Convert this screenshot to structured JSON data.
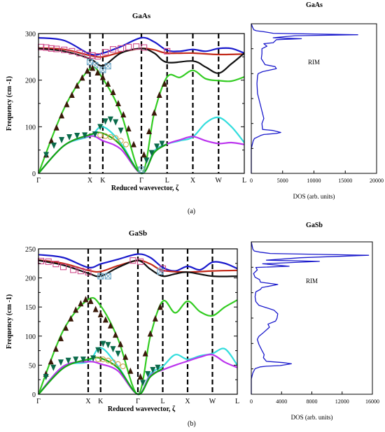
{
  "captions": [
    "(a)",
    "(b)"
  ],
  "chart_data": [
    {
      "type": "line",
      "title": "GaAs",
      "xlabel": "Reduced wavevector, ζ",
      "ylabel": "Frequency (cm -1)",
      "ylim": [
        0,
        300
      ],
      "yticks": [
        0,
        100,
        200,
        300
      ],
      "xticks": [
        "Γ",
        "X",
        "K",
        "Γ",
        "L",
        "X",
        "W",
        "L"
      ],
      "x_positions": [
        0,
        1,
        1.25,
        2,
        2.5,
        3,
        3.5,
        4
      ],
      "series": [
        {
          "color": "#1a1acc",
          "x": [
            0,
            0.5,
            1,
            1.25,
            1.6,
            2,
            2.25,
            2.5,
            2.75,
            3,
            3.25,
            3.5,
            3.75,
            4
          ],
          "y": [
            291,
            285,
            256,
            258,
            272,
            291,
            282,
            264,
            262,
            266,
            262,
            268,
            268,
            258
          ]
        },
        {
          "color": "#c22a1a",
          "x": [
            0,
            0.5,
            1,
            1.25,
            1.6,
            2,
            2.25,
            2.5,
            3,
            3.5,
            4
          ],
          "y": [
            269,
            266,
            253,
            250,
            260,
            268,
            265,
            258,
            258,
            255,
            256
          ]
        },
        {
          "color": "#111111",
          "x": [
            0,
            0.5,
            1,
            1.25,
            1.6,
            2,
            2.25,
            2.5,
            3,
            3.25,
            3.5,
            3.75,
            4
          ],
          "y": [
            268,
            262,
            246,
            231,
            258,
            268,
            258,
            238,
            241,
            228,
            215,
            235,
            258
          ]
        },
        {
          "color": "#33cc22",
          "x": [
            0,
            0.5,
            1,
            1.25,
            1.6,
            2,
            2.25,
            2.5,
            2.75,
            3,
            3.25,
            3.5,
            3.75,
            4
          ],
          "y": [
            0,
            140,
            224,
            203,
            130,
            0,
            130,
            207,
            206,
            221,
            203,
            199,
            198,
            207
          ]
        },
        {
          "color": "#33dddd",
          "x": [
            0,
            0.5,
            1,
            1.25,
            1.6,
            2,
            2.25,
            2.5,
            2.75,
            3,
            3.25,
            3.5,
            3.75,
            4
          ],
          "y": [
            0,
            60,
            80,
            100,
            65,
            0,
            48,
            63,
            70,
            78,
            108,
            120,
            100,
            66
          ]
        },
        {
          "color": "#bb33ee",
          "x": [
            0,
            0.5,
            1,
            1.25,
            1.6,
            2,
            2.25,
            2.5,
            2.75,
            3,
            3.25,
            3.5,
            3.75,
            4
          ],
          "y": [
            0,
            60,
            80,
            70,
            52,
            0,
            45,
            63,
            72,
            79,
            70,
            64,
            66,
            62
          ]
        },
        {
          "color": "#11aa11",
          "x": [
            0,
            0.5,
            1,
            1.25,
            1.6,
            2,
            2.25,
            2.5
          ],
          "y": [
            0,
            60,
            83,
            86,
            60,
            0,
            45,
            63
          ]
        }
      ],
      "experimental": [
        {
          "marker": "square",
          "color": "#d04a8a",
          "x": [
            0.05,
            0.15,
            0.25,
            0.35,
            0.5,
            0.65,
            0.8,
            0.95,
            1.05,
            1.15,
            1.3,
            1.45,
            1.6,
            1.75,
            1.9,
            2.05,
            2.5
          ],
          "y": [
            271,
            270,
            268,
            267,
            265,
            262,
            258,
            254,
            253,
            251,
            260,
            266,
            268,
            271,
            272,
            270,
            262
          ]
        },
        {
          "marker": "cross-square",
          "color": "#6ea8c8",
          "x": [
            1.0,
            1.1,
            1.25,
            1.35,
            2.0
          ],
          "y": [
            239,
            232,
            222,
            230,
            8
          ]
        },
        {
          "marker": "triangle-up",
          "color": "#3a1a0a",
          "x": [
            0.15,
            0.25,
            0.35,
            0.45,
            0.55,
            0.65,
            0.75,
            0.85,
            0.95,
            1.05,
            1.15,
            1.25,
            1.35,
            1.45,
            1.55,
            1.65,
            1.75,
            1.85,
            2.05,
            2.15,
            2.25,
            2.35,
            2.45
          ],
          "y": [
            40,
            70,
            98,
            124,
            148,
            168,
            188,
            205,
            220,
            226,
            216,
            206,
            192,
            174,
            150,
            126,
            96,
            62,
            40,
            90,
            130,
            168,
            192
          ]
        },
        {
          "marker": "triangle-down",
          "color": "#0a6a4a",
          "x": [
            0.15,
            0.3,
            0.45,
            0.6,
            0.75,
            0.9,
            1.1,
            1.2,
            1.3,
            1.4,
            1.5,
            1.6,
            2.1,
            2.2,
            2.3,
            2.4
          ],
          "y": [
            40,
            60,
            72,
            78,
            81,
            82,
            84,
            100,
            112,
            116,
            110,
            92,
            28,
            44,
            58,
            64
          ]
        },
        {
          "marker": "circle",
          "color": "#c8a040",
          "x": [
            1.2,
            1.3,
            1.4,
            1.5,
            1.6,
            1.7
          ],
          "y": [
            82,
            80,
            78,
            76,
            70,
            62
          ]
        }
      ]
    },
    {
      "type": "line",
      "title": "GaAs",
      "xlabel": "DOS (arb. units)",
      "annotation": "RIM",
      "xlim": [
        0,
        20000
      ],
      "xticks": [
        0,
        5000,
        10000,
        15000,
        20000
      ],
      "ylim": [
        0,
        300
      ],
      "series": [
        {
          "color": "#1a1acc",
          "x": [
            0,
            0,
            200,
            300,
            500,
            1200,
            1500,
            2000,
            4000,
            4700,
            3500,
            1800,
            1700,
            2000,
            1800,
            1400,
            1000,
            900,
            1000,
            1100,
            1800,
            2500,
            4000,
            3800,
            2200,
            1600,
            1700,
            1700,
            2500,
            2000,
            3500,
            4000,
            8000,
            3500,
            7000,
            17000,
            3500,
            2500,
            2000,
            800,
            400,
            200,
            0
          ],
          "y": [
            0,
            50,
            60,
            65,
            70,
            74,
            76,
            78,
            80,
            82,
            86,
            88,
            100,
            110,
            120,
            140,
            160,
            180,
            195,
            200,
            204,
            206,
            210,
            214,
            218,
            230,
            240,
            250,
            255,
            260,
            262,
            268,
            270,
            272,
            276,
            278,
            281,
            283,
            284,
            286,
            288,
            293,
            300
          ]
        }
      ]
    },
    {
      "type": "line",
      "title": "GaSb",
      "xlabel": "Reduced wavevector, ζ",
      "ylabel": "Frequency (cm -1)",
      "ylim": [
        0,
        250
      ],
      "yticks": [
        0,
        50,
        100,
        150,
        200,
        250
      ],
      "xticks": [
        "Γ",
        "X",
        "K",
        "Γ",
        "L",
        "X",
        "W",
        "L"
      ],
      "x_positions": [
        0,
        1,
        1.25,
        2,
        2.5,
        3,
        3.5,
        4
      ],
      "series": [
        {
          "color": "#1a1acc",
          "x": [
            0,
            0.5,
            1,
            1.25,
            1.6,
            2,
            2.25,
            2.5,
            2.75,
            3,
            3.25,
            3.5,
            3.75,
            4
          ],
          "y": [
            240,
            235,
            218,
            224,
            232,
            241,
            235,
            218,
            212,
            220,
            214,
            227,
            225,
            216
          ]
        },
        {
          "color": "#c22a1a",
          "x": [
            0,
            0.5,
            1,
            1.25,
            1.6,
            2,
            2.25,
            2.5,
            3,
            3.5,
            4
          ],
          "y": [
            231,
            225,
            213,
            211,
            221,
            230,
            224,
            213,
            210,
            212,
            213
          ]
        },
        {
          "color": "#111111",
          "x": [
            0,
            0.5,
            1,
            1.25,
            1.6,
            2,
            2.25,
            2.5,
            2.75,
            3,
            3.5,
            4
          ],
          "y": [
            230,
            222,
            208,
            203,
            218,
            230,
            215,
            203,
            207,
            210,
            203,
            203
          ]
        },
        {
          "color": "#33cc22",
          "x": [
            0,
            0.5,
            1,
            1.25,
            1.6,
            2,
            2.25,
            2.5,
            2.75,
            3,
            3.25,
            3.5,
            3.75,
            4
          ],
          "y": [
            0,
            110,
            163,
            152,
            95,
            0,
            100,
            160,
            140,
            160,
            142,
            135,
            150,
            162
          ]
        },
        {
          "color": "#33dddd",
          "x": [
            0,
            0.5,
            1,
            1.25,
            1.6,
            2,
            2.25,
            2.5,
            2.75,
            3,
            3.25,
            3.5,
            3.75,
            4
          ],
          "y": [
            0,
            48,
            56,
            80,
            48,
            0,
            35,
            48,
            68,
            60,
            66,
            70,
            78,
            50
          ]
        },
        {
          "color": "#bb33ee",
          "x": [
            0,
            0.5,
            1,
            1.25,
            1.6,
            2,
            2.25,
            2.5,
            2.75,
            3,
            3.25,
            3.5,
            3.75,
            4
          ],
          "y": [
            0,
            48,
            56,
            52,
            40,
            0,
            32,
            42,
            50,
            57,
            64,
            68,
            55,
            46
          ]
        },
        {
          "color": "#11aa11",
          "x": [
            0,
            0.5,
            1,
            1.25,
            1.6,
            2,
            2.25,
            2.5
          ],
          "y": [
            0,
            45,
            60,
            62,
            45,
            0,
            30,
            44
          ]
        }
      ],
      "experimental": [
        {
          "marker": "square",
          "color": "#d04a8a",
          "x": [
            0.05,
            0.2,
            0.35,
            0.5,
            0.7,
            0.85,
            1.0,
            1.9,
            2.05,
            2.5
          ],
          "y": [
            229,
            228,
            224,
            219,
            214,
            212,
            210,
            230,
            228,
            216
          ]
        },
        {
          "marker": "cross-square",
          "color": "#6ea8c8",
          "x": [
            1.25,
            1.4,
            2.45
          ],
          "y": [
            203,
            203,
            211
          ]
        },
        {
          "marker": "triangle-up",
          "color": "#3a1a0a",
          "x": [
            0.15,
            0.25,
            0.35,
            0.45,
            0.55,
            0.65,
            0.75,
            0.85,
            0.95,
            1.05,
            1.15,
            1.25,
            1.35,
            1.45,
            1.55,
            1.65,
            1.75,
            1.85,
            2.05,
            2.15,
            2.25,
            2.35,
            2.45
          ],
          "y": [
            35,
            56,
            78,
            96,
            114,
            130,
            145,
            156,
            163,
            160,
            146,
            137,
            128,
            118,
            102,
            86,
            64,
            40,
            30,
            70,
            104,
            130,
            150
          ]
        },
        {
          "marker": "triangle-down",
          "color": "#0a6a4a",
          "x": [
            0.15,
            0.3,
            0.45,
            0.6,
            0.75,
            0.9,
            1.1,
            1.2,
            1.3,
            1.4,
            1.5,
            1.6,
            2.1,
            2.2,
            2.3,
            2.4
          ],
          "y": [
            30,
            46,
            55,
            58,
            60,
            60,
            62,
            76,
            87,
            85,
            78,
            70,
            20,
            35,
            42,
            46
          ]
        },
        {
          "marker": "circle",
          "color": "#c8a040",
          "x": [
            1.2,
            1.3,
            1.4,
            1.5,
            1.6,
            1.7
          ],
          "y": [
            60,
            60,
            58,
            55,
            52,
            48
          ]
        }
      ]
    },
    {
      "type": "line",
      "title": "GaSb",
      "xlabel": "DOS (arb. units)",
      "annotation": "RIM",
      "xlim": [
        0,
        16000
      ],
      "xticks": [
        0,
        4000,
        8000,
        12000,
        16000
      ],
      "ylim": [
        0,
        250
      ],
      "series": [
        {
          "color": "#1a1acc",
          "x": [
            0,
            0,
            200,
            500,
            1200,
            2000,
            3800,
            5300,
            4200,
            2000,
            1600,
            1700,
            1400,
            1000,
            800,
            1000,
            1500,
            2400,
            2200,
            3200,
            3400,
            3500,
            3000,
            2000,
            1000,
            600,
            500,
            600,
            1200,
            1400,
            3500,
            1200,
            1100,
            500,
            300,
            800,
            600,
            5000,
            1500,
            9000,
            2000,
            6500,
            15500,
            2500,
            1200,
            400,
            200,
            0
          ],
          "y": [
            0,
            25,
            35,
            42,
            45,
            46,
            47,
            50,
            52,
            54,
            60,
            65,
            72,
            82,
            90,
            95,
            100,
            110,
            115,
            120,
            125,
            132,
            138,
            142,
            146,
            152,
            160,
            168,
            172,
            175,
            180,
            184,
            188,
            192,
            198,
            204,
            208,
            210,
            214,
            218,
            220,
            224,
            228,
            231,
            233,
            235,
            238,
            250
          ]
        }
      ]
    }
  ]
}
